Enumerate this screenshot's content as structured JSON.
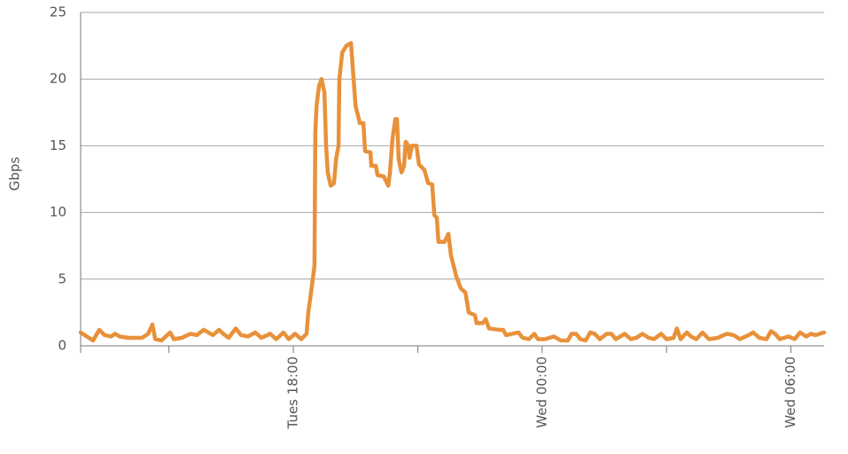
{
  "chart_data": {
    "type": "line",
    "y_label": "Gbps",
    "x": [
      12.87,
      13.02,
      13.17,
      13.32,
      13.45,
      13.6,
      13.7,
      13.81,
      14.03,
      14.35,
      14.5,
      14.6,
      14.67,
      14.82,
      15.03,
      15.12,
      15.31,
      15.52,
      15.67,
      15.84,
      16.06,
      16.21,
      16.31,
      16.44,
      16.61,
      16.74,
      16.91,
      17.08,
      17.23,
      17.44,
      17.59,
      17.76,
      17.89,
      18.04,
      18.19,
      18.32,
      18.36,
      18.41,
      18.51,
      18.53,
      18.56,
      18.62,
      18.68,
      18.75,
      18.79,
      18.83,
      18.9,
      18.98,
      19.03,
      19.09,
      19.11,
      19.18,
      19.28,
      19.39,
      19.43,
      19.5,
      19.58,
      19.6,
      19.69,
      19.73,
      19.86,
      19.88,
      19.99,
      20.03,
      20.18,
      20.29,
      20.33,
      20.39,
      20.46,
      20.5,
      20.54,
      20.61,
      20.67,
      20.71,
      20.78,
      20.8,
      20.86,
      20.97,
      21.03,
      21.16,
      21.25,
      21.35,
      21.4,
      21.46,
      21.5,
      21.65,
      21.74,
      21.8,
      21.93,
      22.04,
      22.15,
      22.23,
      22.38,
      22.42,
      22.57,
      22.64,
      22.72,
      22.96,
      23.06,
      23.13,
      23.28,
      23.43,
      23.53,
      23.68,
      23.81,
      23.9,
      24.07,
      24.28,
      24.45,
      24.62,
      24.71,
      24.82,
      24.92,
      25.05,
      25.16,
      25.27,
      25.39,
      25.56,
      25.67,
      25.78,
      25.99,
      26.14,
      26.27,
      26.42,
      26.57,
      26.7,
      26.87,
      27.0,
      27.17,
      27.25,
      27.34,
      27.49,
      27.59,
      27.72,
      27.87,
      28.02,
      28.24,
      28.45,
      28.62,
      28.77,
      28.98,
      29.09,
      29.24,
      29.41,
      29.52,
      29.62,
      29.73,
      29.94,
      30.09,
      30.22,
      30.37,
      30.48,
      30.59,
      30.69,
      30.8
    ],
    "series": [
      {
        "color": "#e8913a",
        "values": [
          1.0,
          0.7,
          0.4,
          1.2,
          0.8,
          0.7,
          0.9,
          0.7,
          0.6,
          0.6,
          0.9,
          1.6,
          0.5,
          0.4,
          1.0,
          0.5,
          0.6,
          0.9,
          0.8,
          1.2,
          0.8,
          1.2,
          0.9,
          0.6,
          1.3,
          0.8,
          0.7,
          1.0,
          0.6,
          0.9,
          0.5,
          1.0,
          0.5,
          0.9,
          0.5,
          0.9,
          2.5,
          3.6,
          6.0,
          16.0,
          18.0,
          19.5,
          20.0,
          19.0,
          15.0,
          13.0,
          12.0,
          12.2,
          14.0,
          15.0,
          20.0,
          22.0,
          22.5,
          22.7,
          21.0,
          18.0,
          17.0,
          16.7,
          16.7,
          14.6,
          14.5,
          13.5,
          13.5,
          12.8,
          12.7,
          12.0,
          13.0,
          15.5,
          17.0,
          17.0,
          14.0,
          13.0,
          13.5,
          15.3,
          15.0,
          14.1,
          15.0,
          15.0,
          13.6,
          13.2,
          12.2,
          12.1,
          9.8,
          9.6,
          7.8,
          7.8,
          8.4,
          6.8,
          5.2,
          4.3,
          4.0,
          2.5,
          2.3,
          1.7,
          1.7,
          2.0,
          1.3,
          1.2,
          1.2,
          0.8,
          0.9,
          1.0,
          0.6,
          0.5,
          0.9,
          0.5,
          0.5,
          0.7,
          0.4,
          0.4,
          0.9,
          0.9,
          0.5,
          0.4,
          1.0,
          0.9,
          0.5,
          0.9,
          0.9,
          0.5,
          0.9,
          0.5,
          0.6,
          0.9,
          0.6,
          0.5,
          0.9,
          0.5,
          0.6,
          1.3,
          0.5,
          1.0,
          0.7,
          0.5,
          1.0,
          0.5,
          0.6,
          0.9,
          0.8,
          0.5,
          0.8,
          1.0,
          0.6,
          0.5,
          1.1,
          0.9,
          0.5,
          0.7,
          0.5,
          1.0,
          0.7,
          0.9,
          0.8,
          0.9,
          1.0
        ]
      }
    ],
    "xlim": [
      12.87,
      30.8
    ],
    "xticks": [
      {
        "value": 15,
        "label": null
      },
      {
        "value": 18,
        "label": "Tues 18:00"
      },
      {
        "value": 21,
        "label": null
      },
      {
        "value": 24,
        "label": "Wed 00:00"
      },
      {
        "value": 27,
        "label": null
      },
      {
        "value": 30,
        "label": "Wed 06:00"
      }
    ],
    "ylim": [
      0,
      25
    ],
    "yticks": [
      0,
      5,
      10,
      15,
      20,
      25
    ],
    "grid": true
  }
}
